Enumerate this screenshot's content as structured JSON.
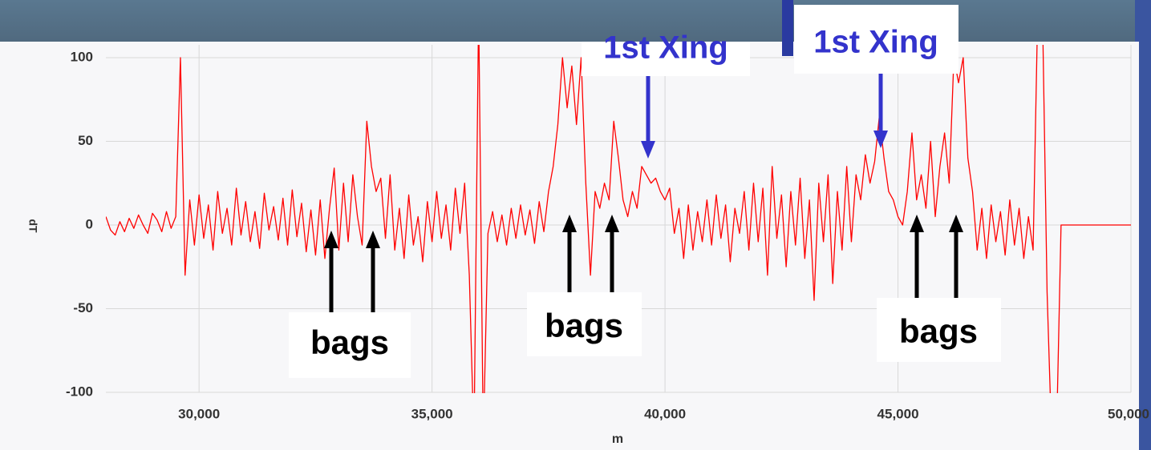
{
  "chart_data": {
    "type": "line",
    "ylabel": "dT",
    "xlabel": "m",
    "xlim": [
      28000,
      50000
    ],
    "ylim": [
      -100,
      100
    ],
    "xticks": [
      {
        "value": 30000,
        "label": "30,000"
      },
      {
        "value": 35000,
        "label": "35,000"
      },
      {
        "value": 40000,
        "label": "40,000"
      },
      {
        "value": 45000,
        "label": "45,000"
      },
      {
        "value": 50000,
        "label": "50,000"
      }
    ],
    "yticks": [
      -100,
      -50,
      0,
      50,
      100
    ],
    "grid": true,
    "x": [
      28000,
      28100,
      28200,
      28300,
      28400,
      28500,
      28600,
      28700,
      28800,
      28900,
      29000,
      29100,
      29200,
      29300,
      29400,
      29500,
      29600,
      29700,
      29800,
      29900,
      30000,
      30100,
      30200,
      30300,
      30400,
      30500,
      30600,
      30700,
      30800,
      30900,
      31000,
      31100,
      31200,
      31300,
      31400,
      31500,
      31600,
      31700,
      31800,
      31900,
      32000,
      32100,
      32200,
      32300,
      32400,
      32500,
      32600,
      32700,
      32800,
      32900,
      33000,
      33100,
      33200,
      33300,
      33400,
      33500,
      33600,
      33700,
      33800,
      33900,
      34000,
      34100,
      34200,
      34300,
      34400,
      34500,
      34600,
      34700,
      34800,
      34900,
      35000,
      35100,
      35200,
      35300,
      35400,
      35500,
      35600,
      35700,
      35800,
      35900,
      36000,
      36100,
      36200,
      36300,
      36400,
      36500,
      36600,
      36700,
      36800,
      36900,
      37000,
      37100,
      37200,
      37300,
      37400,
      37500,
      37600,
      37700,
      37800,
      37900,
      38000,
      38100,
      38200,
      38300,
      38400,
      38500,
      38600,
      38700,
      38800,
      38900,
      39000,
      39100,
      39200,
      39300,
      39400,
      39500,
      39600,
      39700,
      39800,
      39900,
      40000,
      40100,
      40200,
      40300,
      40400,
      40500,
      40600,
      40700,
      40800,
      40900,
      41000,
      41100,
      41200,
      41300,
      41400,
      41500,
      41600,
      41700,
      41800,
      41900,
      42000,
      42100,
      42200,
      42300,
      42400,
      42500,
      42600,
      42700,
      42800,
      42900,
      43000,
      43100,
      43200,
      43300,
      43400,
      43500,
      43600,
      43700,
      43800,
      43900,
      44000,
      44100,
      44200,
      44300,
      44400,
      44500,
      44600,
      44700,
      44800,
      44900,
      45000,
      45100,
      45200,
      45300,
      45400,
      45500,
      45600,
      45700,
      45800,
      45900,
      46000,
      46100,
      46200,
      46300,
      46400,
      46500,
      46600,
      46700,
      46800,
      46900,
      47000,
      47100,
      47200,
      47300,
      47400,
      47500,
      47600,
      47700,
      47800,
      47900,
      48000,
      48100,
      48200,
      48300,
      48400,
      48500,
      50000
    ],
    "series": [
      {
        "color": "#ff0000",
        "values": [
          5,
          -3,
          -6,
          2,
          -4,
          4,
          -2,
          6,
          0,
          -5,
          7,
          3,
          -4,
          8,
          -2,
          5,
          100,
          -30,
          15,
          -12,
          18,
          -8,
          12,
          -15,
          20,
          -5,
          10,
          -12,
          22,
          -6,
          14,
          -10,
          8,
          -14,
          19,
          -3,
          11,
          -9,
          16,
          -12,
          21,
          -7,
          13,
          -16,
          9,
          -18,
          15,
          -20,
          10,
          34,
          -15,
          25,
          -10,
          30,
          5,
          -12,
          62,
          35,
          20,
          28,
          -8,
          30,
          -15,
          10,
          -20,
          18,
          -12,
          5,
          -22,
          14,
          -10,
          20,
          -8,
          12,
          -15,
          22,
          -5,
          25,
          -30,
          -130,
          130,
          -130,
          -5,
          8,
          -10,
          6,
          -12,
          10,
          -8,
          12,
          -6,
          9,
          -11,
          14,
          -4,
          20,
          35,
          60,
          100,
          70,
          95,
          60,
          100,
          25,
          -30,
          20,
          10,
          25,
          15,
          62,
          40,
          15,
          5,
          20,
          10,
          35,
          30,
          25,
          28,
          20,
          15,
          22,
          -5,
          10,
          -20,
          12,
          -15,
          8,
          -10,
          15,
          -12,
          18,
          -8,
          12,
          -22,
          10,
          -5,
          20,
          -15,
          25,
          -10,
          22,
          -30,
          35,
          -8,
          18,
          -25,
          20,
          -12,
          28,
          -20,
          15,
          -45,
          25,
          -10,
          30,
          -35,
          20,
          -15,
          35,
          -10,
          30,
          15,
          42,
          25,
          38,
          65,
          40,
          20,
          15,
          5,
          0,
          20,
          55,
          15,
          30,
          10,
          50,
          5,
          35,
          55,
          25,
          100,
          85,
          100,
          40,
          20,
          -15,
          10,
          -20,
          12,
          -10,
          8,
          -18,
          15,
          -12,
          10,
          -20,
          5,
          -15,
          130,
          130,
          -40,
          -130,
          -130,
          0,
          0
        ]
      }
    ],
    "annotations": [
      "1st Xing",
      "1st Xing",
      "bags",
      "bags",
      "bags"
    ]
  }
}
